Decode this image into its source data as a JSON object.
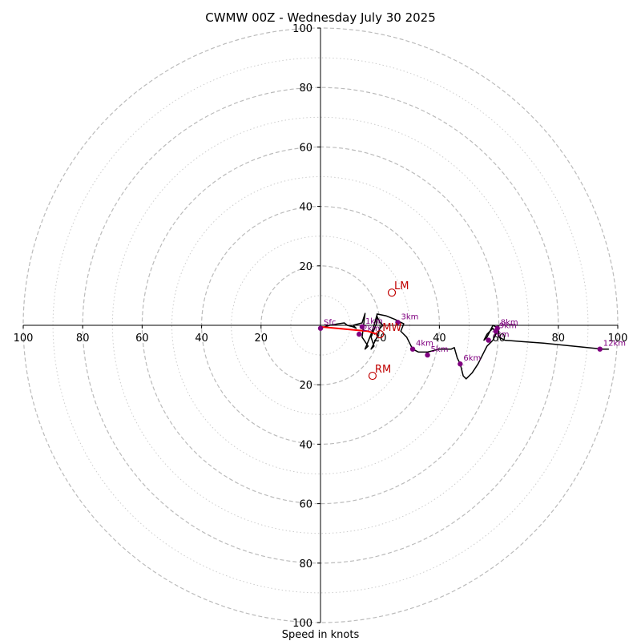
{
  "chart_data": {
    "type": "hodograph",
    "title": "CWMW 00Z - Wednesday July 30 2025",
    "xlabel": "Speed in knots",
    "units": "knots",
    "max_speed": 100,
    "rings_major": [
      20,
      40,
      60,
      80,
      100
    ],
    "rings_minor": [
      10,
      30,
      50,
      70,
      90
    ],
    "x_tick_labels": [
      {
        "value": -100,
        "label": "100"
      },
      {
        "value": -80,
        "label": "80"
      },
      {
        "value": -60,
        "label": "60"
      },
      {
        "value": -40,
        "label": "40"
      },
      {
        "value": -20,
        "label": "20"
      },
      {
        "value": 20,
        "label": "20"
      },
      {
        "value": 40,
        "label": "40"
      },
      {
        "value": 60,
        "label": "60"
      },
      {
        "value": 80,
        "label": "80"
      },
      {
        "value": 100,
        "label": "100"
      }
    ],
    "y_tick_labels": [
      {
        "value": 100,
        "label": "100"
      },
      {
        "value": 80,
        "label": "80"
      },
      {
        "value": 60,
        "label": "60"
      },
      {
        "value": 40,
        "label": "40"
      },
      {
        "value": 20,
        "label": "20"
      },
      {
        "value": -20,
        "label": "20"
      },
      {
        "value": -40,
        "label": "40"
      },
      {
        "value": -60,
        "label": "60"
      },
      {
        "value": -80,
        "label": "80"
      },
      {
        "value": -100,
        "label": "100"
      }
    ],
    "trace": [
      [
        0,
        -1
      ],
      [
        3,
        0
      ],
      [
        6,
        0.5
      ],
      [
        8,
        0.8
      ],
      [
        9,
        0
      ],
      [
        11,
        -0.5
      ],
      [
        12,
        -1
      ],
      [
        11,
        0
      ],
      [
        14,
        0.8
      ],
      [
        15,
        4
      ],
      [
        14,
        -4
      ],
      [
        16,
        -7
      ],
      [
        15,
        -8
      ],
      [
        17,
        -3
      ],
      [
        18,
        0
      ],
      [
        19,
        3.5
      ],
      [
        19,
        1
      ],
      [
        17,
        -4
      ],
      [
        18,
        -7
      ],
      [
        17,
        -8
      ],
      [
        19,
        -4
      ],
      [
        20,
        -1
      ],
      [
        21,
        0
      ],
      [
        20,
        1
      ],
      [
        19,
        3
      ],
      [
        19,
        3.8
      ],
      [
        22,
        3.2
      ],
      [
        25,
        2
      ],
      [
        27,
        1
      ],
      [
        28,
        0.5
      ],
      [
        27,
        -2
      ],
      [
        28,
        -3
      ],
      [
        29,
        -4
      ],
      [
        30,
        -6
      ],
      [
        31,
        -8
      ],
      [
        33,
        -9
      ],
      [
        36,
        -9
      ],
      [
        40,
        -8
      ],
      [
        44,
        -8
      ],
      [
        45,
        -7.5
      ],
      [
        46,
        -11
      ],
      [
        47,
        -13
      ],
      [
        48,
        -17
      ],
      [
        49,
        -18
      ],
      [
        50,
        -17
      ],
      [
        51,
        -16
      ],
      [
        53,
        -13
      ],
      [
        55,
        -9
      ],
      [
        56,
        -7
      ],
      [
        57,
        -6
      ],
      [
        58,
        -5
      ],
      [
        59,
        -3
      ],
      [
        58,
        -1
      ],
      [
        57,
        -2
      ],
      [
        56,
        -3
      ],
      [
        55,
        -5
      ],
      [
        56,
        -4
      ],
      [
        57,
        -2
      ],
      [
        58,
        0
      ],
      [
        59,
        -0.5
      ],
      [
        59.5,
        -1.5
      ],
      [
        60,
        -2
      ],
      [
        60,
        -4
      ],
      [
        60.5,
        -4.2
      ],
      [
        61,
        -4.5
      ],
      [
        62,
        -5
      ],
      [
        68,
        -5.5
      ],
      [
        75,
        -6
      ],
      [
        85,
        -7
      ],
      [
        95,
        -8
      ],
      [
        97,
        -8
      ]
    ],
    "height_markers": [
      {
        "label": "Sfc",
        "u": 0,
        "v": -1
      },
      {
        "label": "1km",
        "u": 14,
        "v": -0.5
      },
      {
        "label": "2km",
        "u": 13,
        "v": -3
      },
      {
        "label": "3km",
        "u": 26,
        "v": 1
      },
      {
        "label": "4km",
        "u": 31,
        "v": -8
      },
      {
        "label": "5km",
        "u": 36,
        "v": -10
      },
      {
        "label": "6km",
        "u": 47,
        "v": -13
      },
      {
        "label": "7km",
        "u": 56.5,
        "v": -5
      },
      {
        "label": "8km",
        "u": 59.5,
        "v": -1
      },
      {
        "label": "9km",
        "u": 59,
        "v": -2
      },
      {
        "label": "12km",
        "u": 94,
        "v": -8
      }
    ],
    "mean_shear_line": [
      [
        0,
        -0.5
      ],
      [
        16,
        -2
      ],
      [
        19,
        -3
      ]
    ],
    "storm_motions": [
      {
        "label": "LM",
        "u": 24,
        "v": 11
      },
      {
        "label": "MW",
        "u": 20,
        "v": -3
      },
      {
        "label": "RM",
        "u": 17.5,
        "v": -17
      }
    ],
    "colors": {
      "trace": "#000000",
      "height_markers": "#800080",
      "mean_shear": "#ff0000",
      "storm_motion": "#c00000",
      "ring_major": "#bbbbbb",
      "ring_minor": "#cccccc"
    }
  }
}
